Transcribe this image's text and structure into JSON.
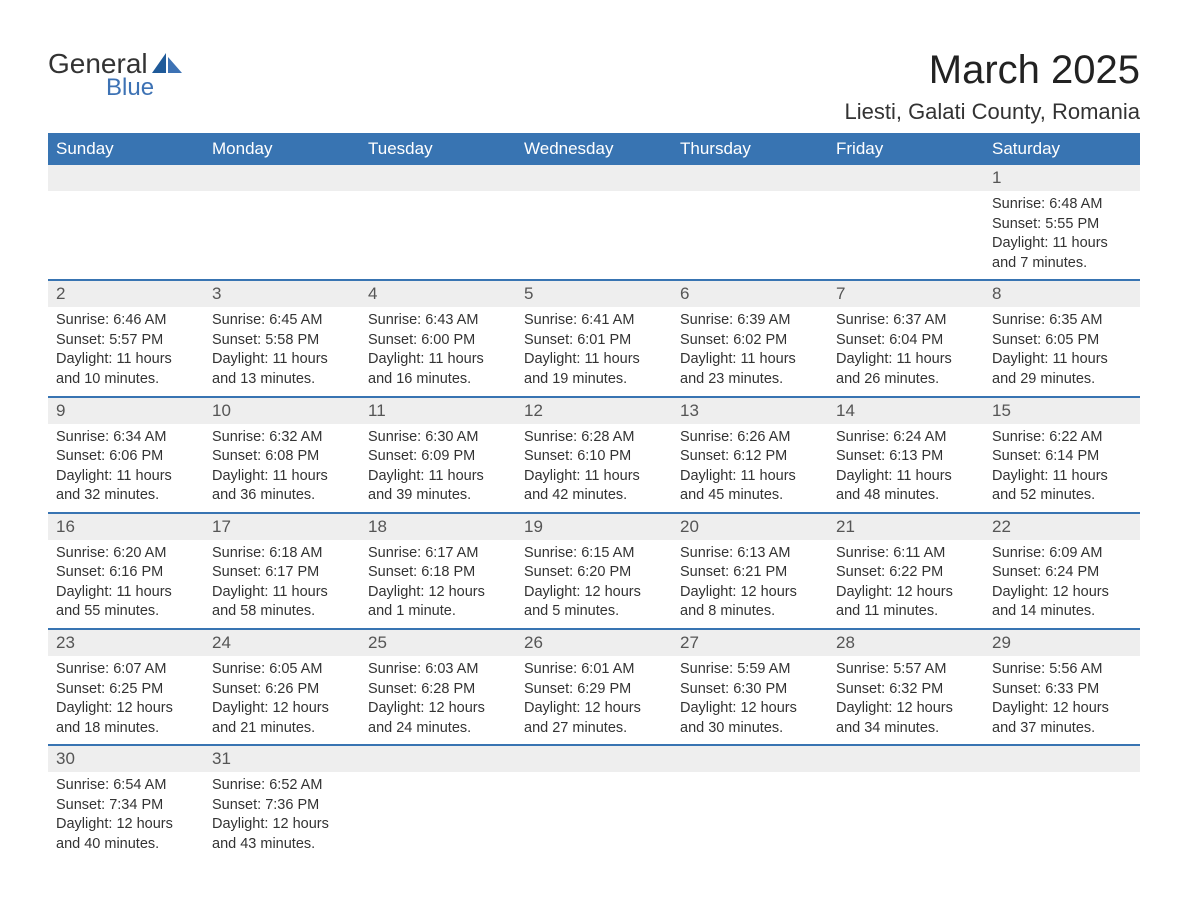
{
  "brand": {
    "general": "General",
    "blue": "Blue"
  },
  "title": "March 2025",
  "location": "Liesti, Galati County, Romania",
  "colors": {
    "header_bg": "#3874b2",
    "header_text": "#ffffff",
    "daynum_bg": "#eeeeee",
    "border": "#3874b2",
    "text": "#333333",
    "brand_blue": "#3d72b4"
  },
  "fonts": {
    "title_size": 40,
    "location_size": 22,
    "header_size": 17,
    "daynum_size": 17,
    "body_size": 14.5
  },
  "weekday_headers": [
    "Sunday",
    "Monday",
    "Tuesday",
    "Wednesday",
    "Thursday",
    "Friday",
    "Saturday"
  ],
  "weeks": [
    [
      null,
      null,
      null,
      null,
      null,
      null,
      {
        "n": "1",
        "sr": "Sunrise: 6:48 AM",
        "ss": "Sunset: 5:55 PM",
        "d1": "Daylight: 11 hours",
        "d2": "and 7 minutes."
      }
    ],
    [
      {
        "n": "2",
        "sr": "Sunrise: 6:46 AM",
        "ss": "Sunset: 5:57 PM",
        "d1": "Daylight: 11 hours",
        "d2": "and 10 minutes."
      },
      {
        "n": "3",
        "sr": "Sunrise: 6:45 AM",
        "ss": "Sunset: 5:58 PM",
        "d1": "Daylight: 11 hours",
        "d2": "and 13 minutes."
      },
      {
        "n": "4",
        "sr": "Sunrise: 6:43 AM",
        "ss": "Sunset: 6:00 PM",
        "d1": "Daylight: 11 hours",
        "d2": "and 16 minutes."
      },
      {
        "n": "5",
        "sr": "Sunrise: 6:41 AM",
        "ss": "Sunset: 6:01 PM",
        "d1": "Daylight: 11 hours",
        "d2": "and 19 minutes."
      },
      {
        "n": "6",
        "sr": "Sunrise: 6:39 AM",
        "ss": "Sunset: 6:02 PM",
        "d1": "Daylight: 11 hours",
        "d2": "and 23 minutes."
      },
      {
        "n": "7",
        "sr": "Sunrise: 6:37 AM",
        "ss": "Sunset: 6:04 PM",
        "d1": "Daylight: 11 hours",
        "d2": "and 26 minutes."
      },
      {
        "n": "8",
        "sr": "Sunrise: 6:35 AM",
        "ss": "Sunset: 6:05 PM",
        "d1": "Daylight: 11 hours",
        "d2": "and 29 minutes."
      }
    ],
    [
      {
        "n": "9",
        "sr": "Sunrise: 6:34 AM",
        "ss": "Sunset: 6:06 PM",
        "d1": "Daylight: 11 hours",
        "d2": "and 32 minutes."
      },
      {
        "n": "10",
        "sr": "Sunrise: 6:32 AM",
        "ss": "Sunset: 6:08 PM",
        "d1": "Daylight: 11 hours",
        "d2": "and 36 minutes."
      },
      {
        "n": "11",
        "sr": "Sunrise: 6:30 AM",
        "ss": "Sunset: 6:09 PM",
        "d1": "Daylight: 11 hours",
        "d2": "and 39 minutes."
      },
      {
        "n": "12",
        "sr": "Sunrise: 6:28 AM",
        "ss": "Sunset: 6:10 PM",
        "d1": "Daylight: 11 hours",
        "d2": "and 42 minutes."
      },
      {
        "n": "13",
        "sr": "Sunrise: 6:26 AM",
        "ss": "Sunset: 6:12 PM",
        "d1": "Daylight: 11 hours",
        "d2": "and 45 minutes."
      },
      {
        "n": "14",
        "sr": "Sunrise: 6:24 AM",
        "ss": "Sunset: 6:13 PM",
        "d1": "Daylight: 11 hours",
        "d2": "and 48 minutes."
      },
      {
        "n": "15",
        "sr": "Sunrise: 6:22 AM",
        "ss": "Sunset: 6:14 PM",
        "d1": "Daylight: 11 hours",
        "d2": "and 52 minutes."
      }
    ],
    [
      {
        "n": "16",
        "sr": "Sunrise: 6:20 AM",
        "ss": "Sunset: 6:16 PM",
        "d1": "Daylight: 11 hours",
        "d2": "and 55 minutes."
      },
      {
        "n": "17",
        "sr": "Sunrise: 6:18 AM",
        "ss": "Sunset: 6:17 PM",
        "d1": "Daylight: 11 hours",
        "d2": "and 58 minutes."
      },
      {
        "n": "18",
        "sr": "Sunrise: 6:17 AM",
        "ss": "Sunset: 6:18 PM",
        "d1": "Daylight: 12 hours",
        "d2": "and 1 minute."
      },
      {
        "n": "19",
        "sr": "Sunrise: 6:15 AM",
        "ss": "Sunset: 6:20 PM",
        "d1": "Daylight: 12 hours",
        "d2": "and 5 minutes."
      },
      {
        "n": "20",
        "sr": "Sunrise: 6:13 AM",
        "ss": "Sunset: 6:21 PM",
        "d1": "Daylight: 12 hours",
        "d2": "and 8 minutes."
      },
      {
        "n": "21",
        "sr": "Sunrise: 6:11 AM",
        "ss": "Sunset: 6:22 PM",
        "d1": "Daylight: 12 hours",
        "d2": "and 11 minutes."
      },
      {
        "n": "22",
        "sr": "Sunrise: 6:09 AM",
        "ss": "Sunset: 6:24 PM",
        "d1": "Daylight: 12 hours",
        "d2": "and 14 minutes."
      }
    ],
    [
      {
        "n": "23",
        "sr": "Sunrise: 6:07 AM",
        "ss": "Sunset: 6:25 PM",
        "d1": "Daylight: 12 hours",
        "d2": "and 18 minutes."
      },
      {
        "n": "24",
        "sr": "Sunrise: 6:05 AM",
        "ss": "Sunset: 6:26 PM",
        "d1": "Daylight: 12 hours",
        "d2": "and 21 minutes."
      },
      {
        "n": "25",
        "sr": "Sunrise: 6:03 AM",
        "ss": "Sunset: 6:28 PM",
        "d1": "Daylight: 12 hours",
        "d2": "and 24 minutes."
      },
      {
        "n": "26",
        "sr": "Sunrise: 6:01 AM",
        "ss": "Sunset: 6:29 PM",
        "d1": "Daylight: 12 hours",
        "d2": "and 27 minutes."
      },
      {
        "n": "27",
        "sr": "Sunrise: 5:59 AM",
        "ss": "Sunset: 6:30 PM",
        "d1": "Daylight: 12 hours",
        "d2": "and 30 minutes."
      },
      {
        "n": "28",
        "sr": "Sunrise: 5:57 AM",
        "ss": "Sunset: 6:32 PM",
        "d1": "Daylight: 12 hours",
        "d2": "and 34 minutes."
      },
      {
        "n": "29",
        "sr": "Sunrise: 5:56 AM",
        "ss": "Sunset: 6:33 PM",
        "d1": "Daylight: 12 hours",
        "d2": "and 37 minutes."
      }
    ],
    [
      {
        "n": "30",
        "sr": "Sunrise: 6:54 AM",
        "ss": "Sunset: 7:34 PM",
        "d1": "Daylight: 12 hours",
        "d2": "and 40 minutes."
      },
      {
        "n": "31",
        "sr": "Sunrise: 6:52 AM",
        "ss": "Sunset: 7:36 PM",
        "d1": "Daylight: 12 hours",
        "d2": "and 43 minutes."
      },
      null,
      null,
      null,
      null,
      null
    ]
  ]
}
